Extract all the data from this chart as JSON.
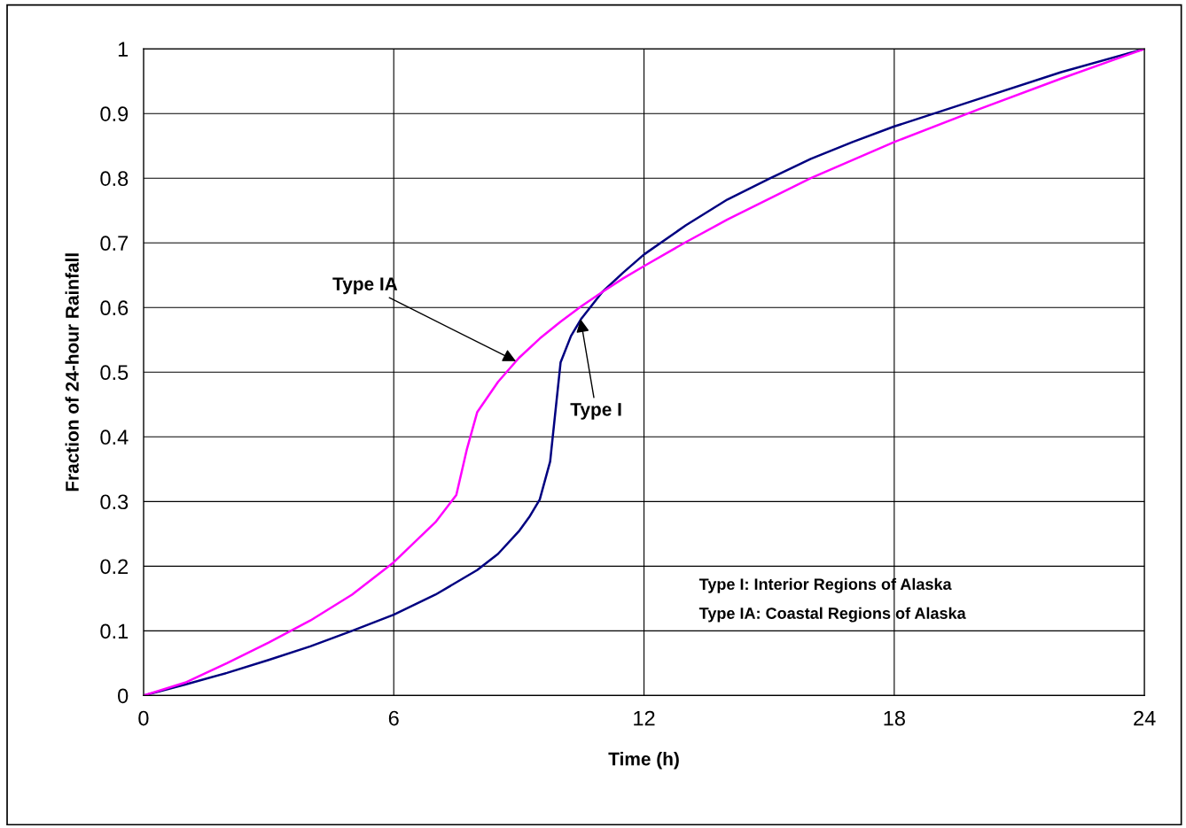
{
  "chart_data": {
    "type": "line",
    "xlabel": "Time (h)",
    "ylabel": "Fraction of 24-hour Rainfall",
    "xlim": [
      0,
      24
    ],
    "xticks": [
      0,
      6,
      12,
      18,
      24
    ],
    "ylim": [
      0,
      1
    ],
    "yticks": [
      0,
      0.1,
      0.2,
      0.3,
      0.4,
      0.5,
      0.6,
      0.7,
      0.8,
      0.9,
      1
    ],
    "grid": true,
    "marker": "none",
    "line_style": "solid",
    "series": [
      {
        "color": "#000080",
        "x": [
          0,
          1,
          2,
          3,
          4,
          5,
          6,
          7,
          8,
          8.5,
          9,
          9.25,
          9.5,
          9.75,
          10,
          10.25,
          10.5,
          11,
          11.5,
          12,
          13,
          14,
          15,
          16,
          17,
          18,
          20,
          22,
          24
        ],
        "values": [
          0,
          0.017,
          0.035,
          0.055,
          0.076,
          0.1,
          0.125,
          0.156,
          0.194,
          0.219,
          0.254,
          0.276,
          0.303,
          0.362,
          0.515,
          0.556,
          0.583,
          0.624,
          0.654,
          0.682,
          0.727,
          0.767,
          0.799,
          0.83,
          0.856,
          0.88,
          0.922,
          0.964,
          1
        ]
      },
      {
        "color": "#ff00ff",
        "x": [
          0,
          1,
          2,
          3,
          4,
          5,
          6,
          7,
          7.5,
          7.75,
          8,
          8.5,
          9,
          9.5,
          10,
          10.5,
          11,
          11.5,
          12,
          13,
          14,
          16,
          18,
          20,
          22,
          24
        ],
        "values": [
          0,
          0.02,
          0.05,
          0.082,
          0.116,
          0.156,
          0.206,
          0.268,
          0.31,
          0.38,
          0.438,
          0.485,
          0.522,
          0.552,
          0.578,
          0.602,
          0.624,
          0.645,
          0.664,
          0.701,
          0.736,
          0.8,
          0.856,
          0.906,
          0.954,
          1
        ]
      }
    ],
    "annotations": [
      {
        "text": "Type IA",
        "x": 8.93,
        "y": 0.517
      },
      {
        "text": "Type I",
        "x": 10.48,
        "y": 0.582
      },
      "Type I: Interior Regions of Alaska",
      "Type IA: Coastal Regions of Alaska"
    ]
  }
}
